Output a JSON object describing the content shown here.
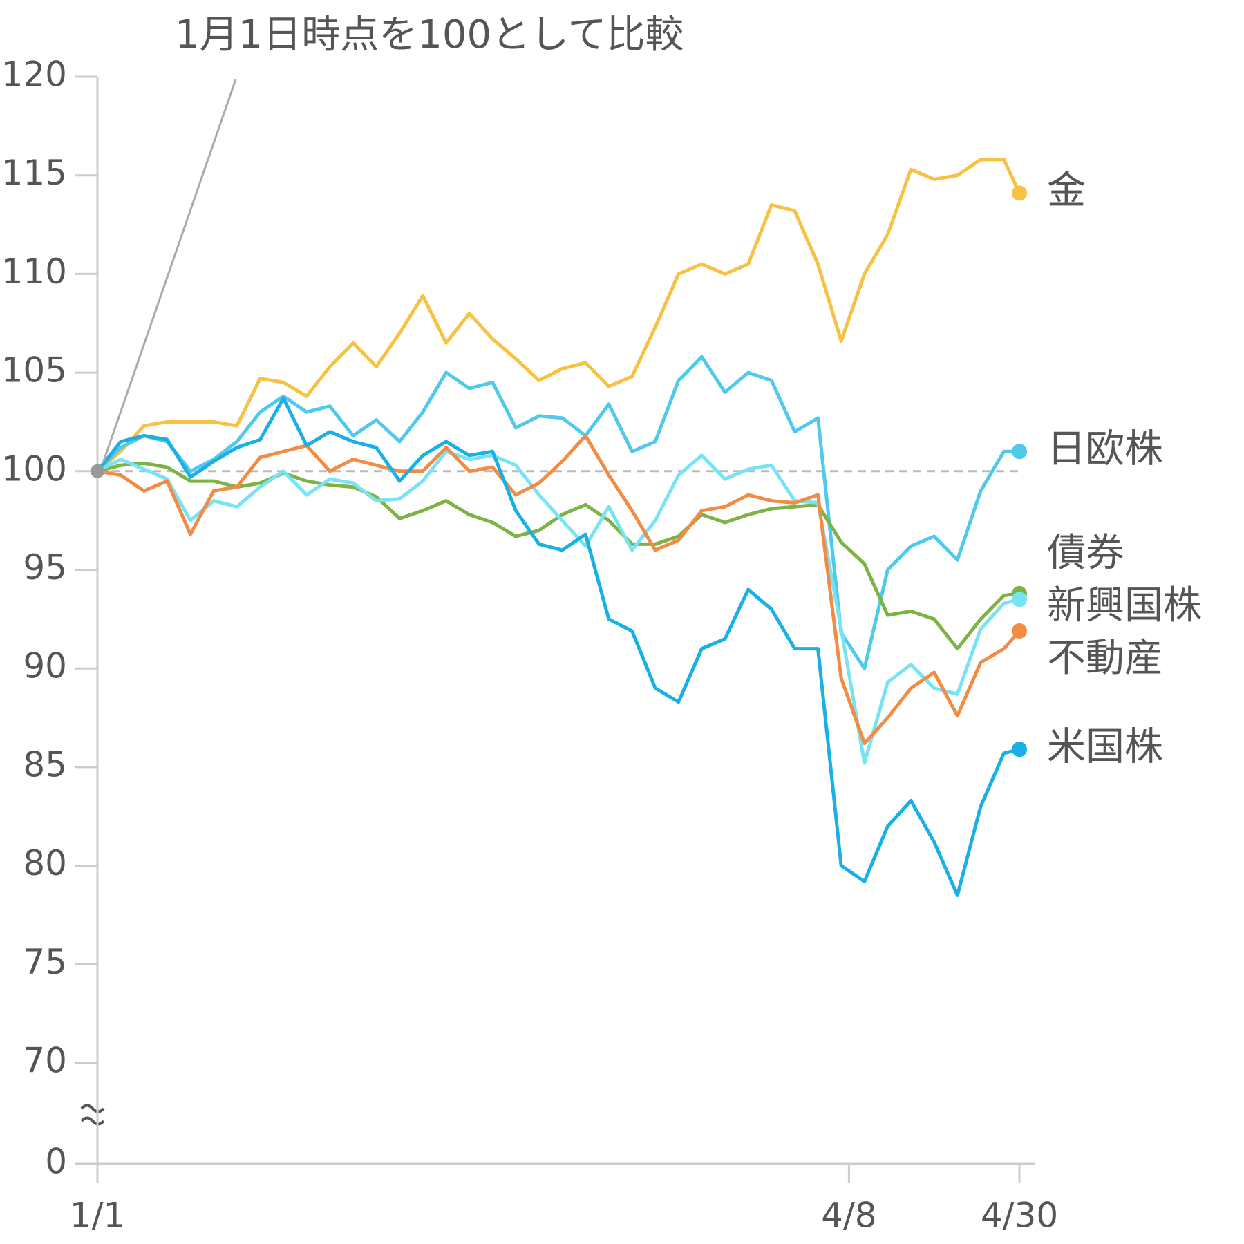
{
  "chart_data": {
    "type": "line",
    "annotation": "1月1日時点を100として比較",
    "x": [
      0,
      3,
      6,
      9,
      12,
      15,
      18,
      21,
      24,
      27,
      30,
      33,
      36,
      39,
      42,
      45,
      48,
      51,
      54,
      57,
      60,
      63,
      66,
      69,
      72,
      75,
      78,
      81,
      84,
      87,
      90,
      93,
      96,
      99,
      102,
      105,
      108,
      111,
      114,
      117,
      119
    ],
    "xlim": [
      0,
      119
    ],
    "xticks": [
      {
        "value": 0,
        "label": "1/1"
      },
      {
        "value": 97,
        "label": "4/8"
      },
      {
        "value": 119,
        "label": "4/30"
      }
    ],
    "ylim": [
      70,
      120
    ],
    "yticks": [
      0,
      70,
      75,
      80,
      85,
      90,
      95,
      100,
      105,
      110,
      115,
      120
    ],
    "axis_break": true,
    "baseline": 100,
    "series": [
      {
        "name": "金",
        "color": "#f7c244",
        "values": [
          100,
          101,
          102.3,
          102.5,
          102.5,
          102.5,
          102.3,
          104.7,
          104.5,
          103.8,
          105.3,
          106.5,
          105.3,
          107,
          108.9,
          106.5,
          108,
          106.7,
          105.7,
          104.6,
          105.2,
          105.5,
          104.3,
          104.8,
          107.3,
          110,
          110.5,
          110,
          110.5,
          113.5,
          113.2,
          110.5,
          106.6,
          110,
          112,
          115.3,
          114.8,
          115,
          115.8,
          115.8,
          114.1
        ]
      },
      {
        "name": "日欧株",
        "color": "#4fc9ec",
        "values": [
          100,
          101.2,
          101.8,
          101.5,
          100,
          100.6,
          101.5,
          103,
          103.8,
          103,
          103.3,
          101.8,
          102.6,
          101.5,
          103,
          105,
          104.2,
          104.5,
          102.2,
          102.8,
          102.7,
          101.8,
          103.4,
          101,
          101.5,
          104.6,
          105.8,
          104,
          105,
          104.6,
          102,
          102.7,
          91.8,
          90,
          95,
          96.2,
          96.7,
          95.5,
          99,
          101,
          101
        ]
      },
      {
        "name": "債券",
        "color": "#7db344",
        "values": [
          100,
          100.3,
          100.4,
          100.2,
          99.5,
          99.5,
          99.2,
          99.4,
          99.9,
          99.5,
          99.3,
          99.2,
          98.7,
          97.6,
          98,
          98.5,
          97.8,
          97.4,
          96.7,
          97,
          97.8,
          98.3,
          97.5,
          96.3,
          96.3,
          96.7,
          97.8,
          97.4,
          97.8,
          98.1,
          98.2,
          98.3,
          96.4,
          95.3,
          92.7,
          92.9,
          92.5,
          91,
          92.5,
          93.7,
          93.8
        ]
      },
      {
        "name": "新興国株",
        "color": "#77e3f4",
        "values": [
          100,
          100.6,
          100.1,
          99.6,
          97.5,
          98.5,
          98.2,
          99.2,
          100,
          98.8,
          99.6,
          99.4,
          98.5,
          98.6,
          99.5,
          101,
          100.6,
          100.8,
          100.3,
          98.8,
          97.5,
          96.2,
          98.2,
          96,
          97.5,
          99.8,
          100.8,
          99.6,
          100.1,
          100.3,
          98.5,
          98.4,
          92,
          85.2,
          89.3,
          90.2,
          89,
          88.7,
          92,
          93.3,
          93.5
        ]
      },
      {
        "name": "不動産",
        "color": "#f28c45",
        "values": [
          100,
          99.8,
          99,
          99.5,
          96.8,
          99,
          99.2,
          100.7,
          101,
          101.3,
          100,
          100.6,
          100.3,
          100,
          100,
          101.2,
          100,
          100.2,
          98.8,
          99.4,
          100.5,
          101.8,
          99.8,
          98,
          96,
          96.5,
          98,
          98.2,
          98.8,
          98.5,
          98.4,
          98.8,
          89.5,
          86.2,
          87.5,
          89,
          89.8,
          87.6,
          90.3,
          91,
          91.9
        ]
      },
      {
        "name": "米国株",
        "color": "#1ab0e6",
        "values": [
          100,
          101.5,
          101.8,
          101.6,
          99.7,
          100.5,
          101.2,
          101.6,
          103.7,
          101.3,
          102,
          101.5,
          101.2,
          99.5,
          100.8,
          101.5,
          100.8,
          101,
          98,
          96.3,
          96,
          96.8,
          92.5,
          91.9,
          89,
          88.3,
          91,
          91.5,
          94,
          93,
          91,
          91,
          80,
          79.2,
          82,
          83.3,
          81.2,
          78.5,
          83,
          85.7,
          85.9
        ]
      }
    ]
  }
}
